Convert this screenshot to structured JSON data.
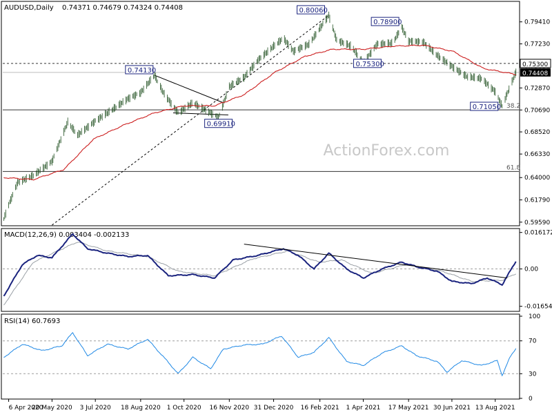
{
  "header": {
    "symbol": "AUDUSD,Daily",
    "ohlc": "0.74371 0.74679 0.74324 0.74408"
  },
  "watermark": "ActionForex.com",
  "colors": {
    "price_bar": "#1e4e1e",
    "ema": "#cc1f1f",
    "macd_line": "#1a237e",
    "signal_line": "#9aa0a6",
    "rsi_line": "#1e88e5",
    "label_border": "#1a237e",
    "grid_dash": "#8e8e8e"
  },
  "chart_data": [
    {
      "type": "line",
      "panel": "price",
      "ylim": [
        0.593,
        0.813
      ],
      "y_ticks": [
        "0.79410",
        "0.77230",
        "0.75050",
        "0.72870",
        "0.70690",
        "0.68520",
        "0.66330",
        "0.64000",
        "0.61790",
        "0.59590"
      ],
      "current_price": "0.74408",
      "x_categories": [
        "6 Apr 2020",
        "20 May 2020",
        "3 Jul 2020",
        "18 Aug 2020",
        "1 Oct 2020",
        "16 Nov 2020",
        "31 Dec 2020",
        "16 Feb 2021",
        "1 Apr 2021",
        "17 May 2021",
        "30 Jun 2021",
        "13 Aug 2021"
      ],
      "price_path": [
        {
          "d": "2020-04-01",
          "v": 0.599
        },
        {
          "d": "2020-04-06",
          "v": 0.613
        },
        {
          "d": "2020-04-15",
          "v": 0.635
        },
        {
          "d": "2020-05-01",
          "v": 0.642
        },
        {
          "d": "2020-05-20",
          "v": 0.656
        },
        {
          "d": "2020-06-05",
          "v": 0.695
        },
        {
          "d": "2020-06-15",
          "v": 0.682
        },
        {
          "d": "2020-07-03",
          "v": 0.696
        },
        {
          "d": "2020-07-20",
          "v": 0.707
        },
        {
          "d": "2020-08-05",
          "v": 0.718
        },
        {
          "d": "2020-08-18",
          "v": 0.724
        },
        {
          "d": "2020-09-01",
          "v": 0.7413
        },
        {
          "d": "2020-09-10",
          "v": 0.724
        },
        {
          "d": "2020-09-25",
          "v": 0.704
        },
        {
          "d": "2020-10-10",
          "v": 0.714
        },
        {
          "d": "2020-10-28",
          "v": 0.704
        },
        {
          "d": "2020-11-05",
          "v": 0.6991
        },
        {
          "d": "2020-11-16",
          "v": 0.73
        },
        {
          "d": "2020-12-01",
          "v": 0.739
        },
        {
          "d": "2020-12-15",
          "v": 0.756
        },
        {
          "d": "2020-12-31",
          "v": 0.77
        },
        {
          "d": "2021-01-10",
          "v": 0.778
        },
        {
          "d": "2021-01-20",
          "v": 0.765
        },
        {
          "d": "2021-02-05",
          "v": 0.772
        },
        {
          "d": "2021-02-25",
          "v": 0.8006
        },
        {
          "d": "2021-03-05",
          "v": 0.776
        },
        {
          "d": "2021-03-20",
          "v": 0.77
        },
        {
          "d": "2021-04-01",
          "v": 0.753
        },
        {
          "d": "2021-04-15",
          "v": 0.772
        },
        {
          "d": "2021-05-01",
          "v": 0.773
        },
        {
          "d": "2021-05-10",
          "v": 0.789
        },
        {
          "d": "2021-05-17",
          "v": 0.775
        },
        {
          "d": "2021-06-01",
          "v": 0.774
        },
        {
          "d": "2021-06-15",
          "v": 0.761
        },
        {
          "d": "2021-06-30",
          "v": 0.75
        },
        {
          "d": "2021-07-15",
          "v": 0.74
        },
        {
          "d": "2021-07-30",
          "v": 0.738
        },
        {
          "d": "2021-08-13",
          "v": 0.725
        },
        {
          "d": "2021-08-20",
          "v": 0.7105
        },
        {
          "d": "2021-08-28",
          "v": 0.73
        },
        {
          "d": "2021-09-03",
          "v": 0.7441
        }
      ],
      "ema_path": [
        {
          "d": "2020-04-01",
          "v": 0.64
        },
        {
          "d": "2020-05-01",
          "v": 0.638
        },
        {
          "d": "2020-06-01",
          "v": 0.648
        },
        {
          "d": "2020-07-01",
          "v": 0.678
        },
        {
          "d": "2020-08-01",
          "v": 0.692
        },
        {
          "d": "2020-09-01",
          "v": 0.704
        },
        {
          "d": "2020-10-01",
          "v": 0.711
        },
        {
          "d": "2020-11-01",
          "v": 0.711
        },
        {
          "d": "2020-12-01",
          "v": 0.722
        },
        {
          "d": "2021-01-01",
          "v": 0.744
        },
        {
          "d": "2021-02-01",
          "v": 0.76
        },
        {
          "d": "2021-03-01",
          "v": 0.767
        },
        {
          "d": "2021-04-01",
          "v": 0.767
        },
        {
          "d": "2021-05-01",
          "v": 0.77
        },
        {
          "d": "2021-06-01",
          "v": 0.771
        },
        {
          "d": "2021-07-01",
          "v": 0.765
        },
        {
          "d": "2021-08-01",
          "v": 0.748
        },
        {
          "d": "2021-09-03",
          "v": 0.742
        }
      ],
      "levels": [
        {
          "label": "0.75300",
          "value": 0.753,
          "style": "dashed",
          "tag": "0.75300"
        },
        {
          "label": "",
          "value": 0.7441,
          "style": "solid-gray"
        },
        {
          "label": "38.2",
          "value": 0.707,
          "style": "solid"
        },
        {
          "label": "61.8",
          "value": 0.646,
          "style": "solid"
        }
      ],
      "annotations": [
        {
          "text": "0.80060",
          "d": "2021-02-25",
          "v": 0.8006
        },
        {
          "text": "0.78900",
          "d": "2021-05-10",
          "v": 0.789
        },
        {
          "text": "0.74130",
          "d": "2020-09-01",
          "v": 0.7413
        },
        {
          "text": "0.75300",
          "d": "2021-04-01",
          "v": 0.753
        },
        {
          "text": "0.69910",
          "d": "2020-11-05",
          "v": 0.6991
        },
        {
          "text": "0.71050",
          "d": "2021-08-20",
          "v": 0.7105
        }
      ],
      "trendlines": [
        {
          "from": {
            "d": "2020-09-01",
            "v": 0.7413
          },
          "to": {
            "d": "2020-11-10",
            "v": 0.714
          },
          "style": "solid"
        },
        {
          "from": {
            "d": "2020-09-20",
            "v": 0.704
          },
          "to": {
            "d": "2020-11-15",
            "v": 0.702
          },
          "style": "solid"
        },
        {
          "from": {
            "d": "2020-05-20",
            "v": 0.593
          },
          "to": {
            "d": "2021-02-25",
            "v": 0.8006
          },
          "style": "dashed"
        }
      ]
    },
    {
      "type": "line",
      "panel": "macd",
      "title": "MACD(12,26,9) 0.003404 -0.002133",
      "ylim": [
        -0.0185,
        0.017
      ],
      "y_ticks": [
        "0.016172",
        "0.00",
        "-0.016544"
      ],
      "macd_path": [
        {
          "d": "2020-04-01",
          "v": -0.012
        },
        {
          "d": "2020-04-20",
          "v": 0.002
        },
        {
          "d": "2020-05-05",
          "v": 0.006
        },
        {
          "d": "2020-05-20",
          "v": 0.005
        },
        {
          "d": "2020-06-10",
          "v": 0.0155
        },
        {
          "d": "2020-06-25",
          "v": 0.009
        },
        {
          "d": "2020-07-15",
          "v": 0.007
        },
        {
          "d": "2020-08-05",
          "v": 0.0055
        },
        {
          "d": "2020-08-25",
          "v": 0.006
        },
        {
          "d": "2020-09-15",
          "v": -0.003
        },
        {
          "d": "2020-10-10",
          "v": -0.0025
        },
        {
          "d": "2020-11-01",
          "v": -0.004
        },
        {
          "d": "2020-11-20",
          "v": 0.004
        },
        {
          "d": "2020-12-15",
          "v": 0.006
        },
        {
          "d": "2021-01-10",
          "v": 0.009
        },
        {
          "d": "2021-01-25",
          "v": 0.006
        },
        {
          "d": "2021-02-10",
          "v": 0.0
        },
        {
          "d": "2021-02-25",
          "v": 0.007
        },
        {
          "d": "2021-03-15",
          "v": 0.0
        },
        {
          "d": "2021-04-01",
          "v": -0.004
        },
        {
          "d": "2021-04-20",
          "v": 0.0
        },
        {
          "d": "2021-05-10",
          "v": 0.003
        },
        {
          "d": "2021-05-25",
          "v": 0.001
        },
        {
          "d": "2021-06-15",
          "v": -0.001
        },
        {
          "d": "2021-06-30",
          "v": -0.0055
        },
        {
          "d": "2021-07-20",
          "v": -0.0065
        },
        {
          "d": "2021-08-05",
          "v": -0.004
        },
        {
          "d": "2021-08-20",
          "v": -0.007
        },
        {
          "d": "2021-09-03",
          "v": 0.0034
        }
      ],
      "signal_path": [
        {
          "d": "2020-04-01",
          "v": -0.016
        },
        {
          "d": "2020-05-01",
          "v": 0.003
        },
        {
          "d": "2020-06-15",
          "v": 0.012
        },
        {
          "d": "2020-07-15",
          "v": 0.008
        },
        {
          "d": "2020-08-25",
          "v": 0.0055
        },
        {
          "d": "2020-09-25",
          "v": -0.001
        },
        {
          "d": "2020-11-01",
          "v": -0.003
        },
        {
          "d": "2020-12-10",
          "v": 0.0045
        },
        {
          "d": "2021-01-15",
          "v": 0.008
        },
        {
          "d": "2021-02-15",
          "v": 0.003
        },
        {
          "d": "2021-03-10",
          "v": 0.004
        },
        {
          "d": "2021-04-10",
          "v": -0.002
        },
        {
          "d": "2021-05-15",
          "v": 0.002
        },
        {
          "d": "2021-06-20",
          "v": -0.001
        },
        {
          "d": "2021-07-20",
          "v": -0.0055
        },
        {
          "d": "2021-08-20",
          "v": -0.005
        },
        {
          "d": "2021-09-03",
          "v": -0.0021
        }
      ],
      "trendline": {
        "from": {
          "d": "2020-12-01",
          "v": 0.011
        },
        "to": {
          "d": "2021-08-25",
          "v": -0.004
        }
      }
    },
    {
      "type": "line",
      "panel": "rsi",
      "title": "RSI(14) 60.7693",
      "ylim": [
        0,
        100
      ],
      "y_ticks": [
        "100",
        "70",
        "30",
        "0"
      ],
      "levels": [
        70,
        30
      ],
      "rsi_path": [
        {
          "d": "2020-04-01",
          "v": 50
        },
        {
          "d": "2020-04-20",
          "v": 66
        },
        {
          "d": "2020-05-10",
          "v": 58
        },
        {
          "d": "2020-05-30",
          "v": 64
        },
        {
          "d": "2020-06-10",
          "v": 80
        },
        {
          "d": "2020-06-25",
          "v": 52
        },
        {
          "d": "2020-07-15",
          "v": 66
        },
        {
          "d": "2020-08-05",
          "v": 60
        },
        {
          "d": "2020-08-25",
          "v": 72
        },
        {
          "d": "2020-09-15",
          "v": 44
        },
        {
          "d": "2020-09-25",
          "v": 30
        },
        {
          "d": "2020-10-10",
          "v": 50
        },
        {
          "d": "2020-10-28",
          "v": 36
        },
        {
          "d": "2020-11-10",
          "v": 60
        },
        {
          "d": "2020-12-01",
          "v": 65
        },
        {
          "d": "2020-12-20",
          "v": 66
        },
        {
          "d": "2021-01-08",
          "v": 76
        },
        {
          "d": "2021-01-25",
          "v": 50
        },
        {
          "d": "2021-02-10",
          "v": 56
        },
        {
          "d": "2021-02-25",
          "v": 74
        },
        {
          "d": "2021-03-15",
          "v": 45
        },
        {
          "d": "2021-04-01",
          "v": 40
        },
        {
          "d": "2021-04-20",
          "v": 55
        },
        {
          "d": "2021-05-10",
          "v": 64
        },
        {
          "d": "2021-05-25",
          "v": 52
        },
        {
          "d": "2021-06-15",
          "v": 45
        },
        {
          "d": "2021-06-25",
          "v": 32
        },
        {
          "d": "2021-07-10",
          "v": 46
        },
        {
          "d": "2021-07-30",
          "v": 40
        },
        {
          "d": "2021-08-15",
          "v": 46
        },
        {
          "d": "2021-08-20",
          "v": 28
        },
        {
          "d": "2021-08-28",
          "v": 50
        },
        {
          "d": "2021-09-03",
          "v": 61
        }
      ]
    }
  ]
}
